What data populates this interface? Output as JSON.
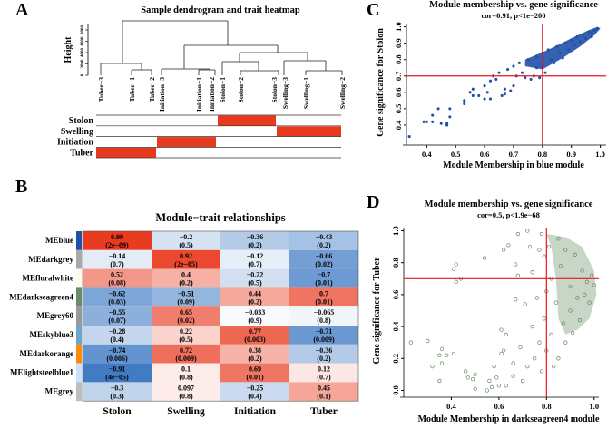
{
  "panels": {
    "a": "A",
    "b": "B",
    "c": "C",
    "d": "D"
  },
  "chart_data": [
    {
      "type": "dendrogram",
      "title": "Sample dendrogram and trait heatmap",
      "ylabel": "Height",
      "yticks": [
        "0",
        "2000",
        "4000",
        "6000",
        "8000"
      ],
      "leaves": [
        "Tuber−3",
        "Tuber−1",
        "Tuber−2",
        "Initiation−3",
        "Initiation−1",
        "Initiation−2",
        "Stolon−1",
        "Stolon−2",
        "Stolon−3",
        "Swelling−3",
        "Swelling−1",
        "Swelling−2"
      ],
      "traits": [
        "Stolon",
        "Swelling",
        "Initiation",
        "Tuber"
      ],
      "trait_membership": {
        "Stolon": [
          6,
          8
        ],
        "Swelling": [
          9,
          11
        ],
        "Initiation": [
          3,
          5
        ],
        "Tuber": [
          0,
          2
        ]
      },
      "trait_color": "#E8391D"
    },
    {
      "type": "heatmap",
      "title": "Module−trait relationships",
      "columns": [
        "Stolon",
        "Swelling",
        "Initiation",
        "Tuber"
      ],
      "rows": [
        {
          "name": "MEblue",
          "color": "#2050A8",
          "values": [
            "0.99",
            "−0.2",
            "−0.36",
            "−0.43"
          ],
          "p": [
            "(2e−09)",
            "(0.5)",
            "(0.2)",
            "(0.2)"
          ],
          "r": [
            0.99,
            -0.2,
            -0.36,
            -0.43
          ]
        },
        {
          "name": "MEdarkgrey",
          "color": "#A9A9A9",
          "values": [
            "−0.14",
            "0.92",
            "−0.12",
            "−0.66"
          ],
          "p": [
            "(0.7)",
            "(2e−05)",
            "(0.7)",
            "(0.02)"
          ],
          "r": [
            -0.14,
            0.92,
            -0.12,
            -0.66
          ]
        },
        {
          "name": "MEfloralwhite",
          "color": "#FFFAF0",
          "values": [
            "0.52",
            "0.4",
            "−0.22",
            "−0.7"
          ],
          "p": [
            "(0.08)",
            "(0.2)",
            "(0.5)",
            "(0.01)"
          ],
          "r": [
            0.52,
            0.4,
            -0.22,
            -0.7
          ]
        },
        {
          "name": "MEdarkseagreen4",
          "color": "#698B69",
          "values": [
            "−0.62",
            "−0.51",
            "0.44",
            "0.7"
          ],
          "p": [
            "(0.03)",
            "(0.09)",
            "(0.2)",
            "(0.01)"
          ],
          "r": [
            -0.62,
            -0.51,
            0.44,
            0.7
          ]
        },
        {
          "name": "MEgrey60",
          "color": "#999999",
          "values": [
            "−0.55",
            "0.65",
            "−0.033",
            "−0.065"
          ],
          "p": [
            "(0.07)",
            "(0.02)",
            "(0.9)",
            "(0.8)"
          ],
          "r": [
            -0.55,
            0.65,
            -0.033,
            -0.065
          ]
        },
        {
          "name": "MEskyblue3",
          "color": "#6CA6CD",
          "values": [
            "−0.28",
            "0.22",
            "0.77",
            "−0.71"
          ],
          "p": [
            "(0.4)",
            "(0.5)",
            "(0.003)",
            "(0.009)"
          ],
          "r": [
            -0.28,
            0.22,
            0.77,
            -0.71
          ]
        },
        {
          "name": "MEdarkorange",
          "color": "#FF8C00",
          "values": [
            "−0.74",
            "0.72",
            "0.38",
            "−0.36"
          ],
          "p": [
            "(0.006)",
            "(0.009)",
            "(0.2)",
            "(0.2)"
          ],
          "r": [
            -0.74,
            0.72,
            0.38,
            -0.36
          ]
        },
        {
          "name": "MElightsteelblue1",
          "color": "#CAE1FF",
          "values": [
            "−0.91",
            "0.1",
            "0.69",
            "0.12"
          ],
          "p": [
            "(4e−05)",
            "(0.8)",
            "(0.01)",
            "(0.7)"
          ],
          "r": [
            -0.91,
            0.1,
            0.69,
            0.12
          ]
        },
        {
          "name": "MEgrey",
          "color": "#BEBEBE",
          "values": [
            "−0.3",
            "0.097",
            "−0.25",
            "0.45"
          ],
          "p": [
            "(0.3)",
            "(0.8)",
            "(0.4)",
            "(0.1)"
          ],
          "r": [
            -0.3,
            0.097,
            -0.25,
            0.45
          ]
        }
      ],
      "range": [
        -1,
        1
      ]
    },
    {
      "type": "scatter",
      "title": "Module membership vs. gene significance",
      "subtitle": "cor=0.91, p<1e−200",
      "xlabel": "Module Membership in blue module",
      "ylabel": "Gene significance for Stolon",
      "xlim": [
        0.33,
        1.02
      ],
      "ylim": [
        0.3,
        1.02
      ],
      "xticks": [
        "0.4",
        "0.5",
        "0.6",
        "0.7",
        "0.8",
        "0.9",
        "1.0"
      ],
      "yticks": [
        "0.4",
        "0.5",
        "0.6",
        "0.7",
        "0.8",
        "0.9",
        "1.0"
      ],
      "hline": 0.7,
      "vline": 0.8,
      "color": "#2050A8",
      "line_color": "#E8141E",
      "points": [
        [
          0.34,
          0.33
        ],
        [
          0.39,
          0.42
        ],
        [
          0.4,
          0.42
        ],
        [
          0.42,
          0.42
        ],
        [
          0.42,
          0.46
        ],
        [
          0.44,
          0.5
        ],
        [
          0.45,
          0.41
        ],
        [
          0.47,
          0.4
        ],
        [
          0.48,
          0.45
        ],
        [
          0.48,
          0.5
        ],
        [
          0.47,
          0.41
        ],
        [
          0.53,
          0.53
        ],
        [
          0.53,
          0.55
        ],
        [
          0.55,
          0.6
        ],
        [
          0.56,
          0.62
        ],
        [
          0.56,
          0.58
        ],
        [
          0.58,
          0.58
        ],
        [
          0.6,
          0.56
        ],
        [
          0.6,
          0.64
        ],
        [
          0.61,
          0.6
        ],
        [
          0.62,
          0.67
        ],
        [
          0.62,
          0.56
        ],
        [
          0.63,
          0.7
        ],
        [
          0.64,
          0.68
        ],
        [
          0.65,
          0.72
        ],
        [
          0.66,
          0.58
        ],
        [
          0.67,
          0.62
        ],
        [
          0.67,
          0.59
        ],
        [
          0.68,
          0.74
        ],
        [
          0.69,
          0.61
        ],
        [
          0.7,
          0.76
        ],
        [
          0.7,
          0.64
        ],
        [
          0.71,
          0.7
        ],
        [
          0.72,
          0.78
        ],
        [
          0.73,
          0.72
        ],
        [
          0.74,
          0.69
        ],
        [
          0.75,
          0.8
        ],
        [
          0.76,
          0.68
        ],
        [
          0.77,
          0.7
        ],
        [
          0.78,
          0.82
        ],
        [
          0.78,
          0.75
        ],
        [
          0.79,
          0.69
        ],
        [
          0.8,
          0.84
        ],
        [
          0.8,
          0.76
        ],
        [
          0.81,
          0.72
        ],
        [
          0.82,
          0.86
        ],
        [
          0.83,
          0.8
        ],
        [
          0.84,
          0.78
        ],
        [
          0.85,
          0.88
        ],
        [
          0.86,
          0.84
        ],
        [
          0.87,
          0.81
        ],
        [
          0.88,
          0.9
        ],
        [
          0.89,
          0.86
        ],
        [
          0.9,
          0.92
        ],
        [
          0.91,
          0.89
        ],
        [
          0.92,
          0.94
        ],
        [
          0.93,
          0.91
        ],
        [
          0.94,
          0.95
        ],
        [
          0.95,
          0.93
        ],
        [
          0.96,
          0.97
        ],
        [
          0.97,
          0.96
        ],
        [
          0.97,
          0.94
        ],
        [
          0.98,
          0.98
        ],
        [
          0.99,
          0.99
        ]
      ]
    },
    {
      "type": "scatter",
      "title": "Module membership vs. gene significance",
      "subtitle": "cor=0.5, p<1.9e−68",
      "xlabel": "Module Membership in darkseagreen4 module",
      "ylabel": "Gene significance for Tuber",
      "xlim": [
        0.2,
        1.02
      ],
      "ylim": [
        -0.02,
        1.02
      ],
      "xticks": [
        "0.4",
        "0.6",
        "0.8",
        "1.0"
      ],
      "yticks": [
        "0.0",
        "0.2",
        "0.4",
        "0.6",
        "0.8",
        "1.0"
      ],
      "hline": 0.7,
      "vline": 0.8,
      "color": "#5E8A5E",
      "line_color": "#E8141E",
      "points": [
        [
          0.23,
          0.3
        ],
        [
          0.3,
          0.31
        ],
        [
          0.32,
          0.15
        ],
        [
          0.35,
          0.06
        ],
        [
          0.35,
          0.22
        ],
        [
          0.36,
          0.26
        ],
        [
          0.36,
          0.17
        ],
        [
          0.38,
          0.22
        ],
        [
          0.41,
          0.23
        ],
        [
          0.41,
          0.76
        ],
        [
          0.42,
          0.79
        ],
        [
          0.42,
          0.68
        ],
        [
          0.44,
          0.7
        ],
        [
          0.46,
          0.12
        ],
        [
          0.47,
          0.08
        ],
        [
          0.49,
          0.07
        ],
        [
          0.5,
          0.1
        ],
        [
          0.5,
          0.01
        ],
        [
          0.54,
          0.83
        ],
        [
          0.55,
          0.0
        ],
        [
          0.56,
          0.06
        ],
        [
          0.57,
          0.02
        ],
        [
          0.58,
          0.15
        ],
        [
          0.59,
          0.08
        ],
        [
          0.6,
          0.03
        ],
        [
          0.61,
          0.38
        ],
        [
          0.61,
          0.23
        ],
        [
          0.62,
          0.88
        ],
        [
          0.62,
          0.25
        ],
        [
          0.63,
          0.35
        ],
        [
          0.63,
          0.03
        ],
        [
          0.64,
          0.91
        ],
        [
          0.66,
          0.17
        ],
        [
          0.66,
          0.09
        ],
        [
          0.67,
          0.57
        ],
        [
          0.67,
          0.79
        ],
        [
          0.68,
          0.98
        ],
        [
          0.68,
          0.72
        ],
        [
          0.69,
          0.27
        ],
        [
          0.7,
          0.06
        ],
        [
          0.71,
          0.54
        ],
        [
          0.72,
          0.15
        ],
        [
          0.72,
          1.0
        ],
        [
          0.73,
          0.9
        ],
        [
          0.74,
          0.4
        ],
        [
          0.74,
          0.74
        ],
        [
          0.75,
          0.2
        ],
        [
          0.76,
          0.58
        ],
        [
          0.77,
          0.88
        ],
        [
          0.77,
          0.3
        ],
        [
          0.78,
          0.12
        ],
        [
          0.78,
          0.98
        ],
        [
          0.79,
          0.84
        ],
        [
          0.79,
          0.45
        ],
        [
          0.8,
          0.25
        ],
        [
          0.8,
          0.62
        ],
        [
          0.81,
          0.9
        ],
        [
          0.82,
          0.35
        ],
        [
          0.82,
          0.7
        ],
        [
          0.83,
          0.15
        ],
        [
          0.84,
          0.55
        ],
        [
          0.85,
          0.95
        ],
        [
          0.85,
          0.2
        ],
        [
          0.86,
          0.78
        ],
        [
          0.87,
          0.42
        ],
        [
          0.88,
          0.3
        ],
        [
          0.88,
          0.88
        ],
        [
          0.9,
          0.5
        ],
        [
          0.9,
          0.65
        ],
        [
          0.91,
          0.36
        ],
        [
          0.92,
          0.85
        ],
        [
          0.93,
          0.58
        ],
        [
          0.94,
          0.44
        ],
        [
          0.95,
          0.75
        ],
        [
          0.96,
          0.6
        ],
        [
          0.97,
          0.68
        ],
        [
          0.98,
          0.55
        ],
        [
          0.99,
          0.72
        ],
        [
          1.0,
          0.66
        ]
      ]
    }
  ]
}
